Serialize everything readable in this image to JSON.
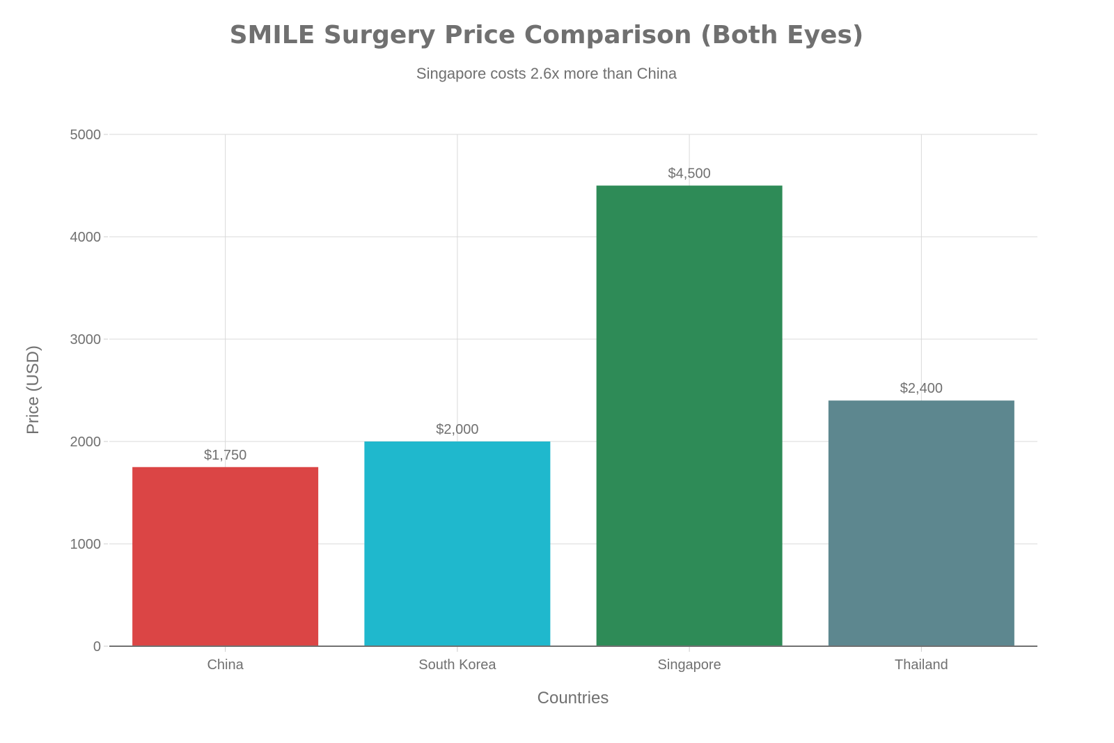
{
  "chart_data": {
    "type": "bar",
    "title": "SMILE Surgery Price Comparison (Both Eyes)",
    "subtitle": "Singapore costs 2.6x more than China",
    "xlabel": "Countries",
    "ylabel": "Price (USD)",
    "categories": [
      "China",
      "South Korea",
      "Singapore",
      "Thailand"
    ],
    "values": [
      1750,
      2000,
      4500,
      2400
    ],
    "data_labels": [
      "$1,750",
      "$2,000",
      "$4,500",
      "$2,400"
    ],
    "colors": [
      "#DB4545",
      "#1FB8CD",
      "#2E8B57",
      "#5D878F"
    ],
    "ylim": [
      0,
      5000
    ],
    "yticks": [
      0,
      1000,
      2000,
      3000,
      4000,
      5000
    ],
    "grid": true
  }
}
